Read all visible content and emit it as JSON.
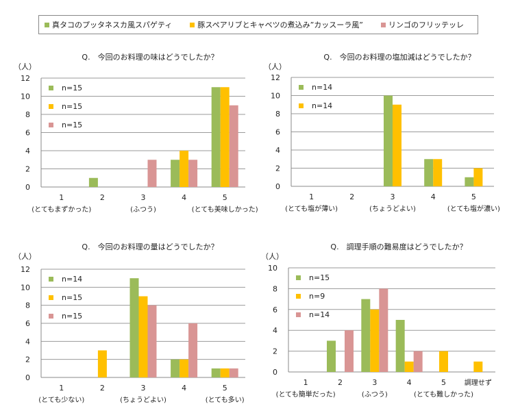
{
  "legend": [
    {
      "label": "真タコのプッタネスカ風スパゲティ",
      "color": "#9bbb59"
    },
    {
      "label": "豚スペアリブとキャベツの煮込み”カッスーラ風”",
      "color": "#ffc000"
    },
    {
      "label": "リンゴのフリッテッレ",
      "color": "#d99594"
    }
  ],
  "chart_data": [
    {
      "type": "bar",
      "title": "Q.　今回のお料理の味はどうでしたか？",
      "unit": "（人）",
      "ylim": [
        0,
        12
      ],
      "ytick_step": 2,
      "grid": true,
      "categories": [
        "1",
        "2",
        "3",
        "4",
        "5"
      ],
      "category_notes": [
        "(とてもまずかった)",
        "",
        "(ふつう)",
        "",
        "(とても美味しかった)"
      ],
      "n_labels": [
        "n=15",
        "n=15",
        "n=15"
      ],
      "series": [
        {
          "values": [
            0,
            1,
            0,
            3,
            11
          ],
          "color": "#9bbb59"
        },
        {
          "values": [
            0,
            0,
            0,
            4,
            11
          ],
          "color": "#ffc000"
        },
        {
          "values": [
            0,
            0,
            3,
            3,
            9
          ],
          "color": "#d99594"
        }
      ]
    },
    {
      "type": "bar",
      "title": "Q.　今回のお料理の塩加減はどうでしたか？",
      "unit": "（人）",
      "ylim": [
        0,
        12
      ],
      "ytick_step": 2,
      "grid": true,
      "categories": [
        "1",
        "2",
        "3",
        "4",
        "5"
      ],
      "category_notes": [
        "(とても塩が薄い)",
        "",
        "(ちょうどよい)",
        "",
        "(とても塩が濃い)"
      ],
      "n_labels": [
        "n=14",
        "n=14"
      ],
      "series": [
        {
          "values": [
            0,
            0,
            10,
            3,
            1
          ],
          "color": "#9bbb59"
        },
        {
          "values": [
            0,
            0,
            9,
            3,
            2
          ],
          "color": "#ffc000"
        }
      ]
    },
    {
      "type": "bar",
      "title": "Q.　今回のお料理の量はどうでしたか？",
      "unit": "（人）",
      "ylim": [
        0,
        12
      ],
      "ytick_step": 2,
      "grid": true,
      "categories": [
        "1",
        "2",
        "3",
        "4",
        "5"
      ],
      "category_notes": [
        "(とても少ない)",
        "",
        "(ちょうどよい)",
        "",
        "(とても多い)"
      ],
      "n_labels": [
        "n=14",
        "n=15",
        "n=15"
      ],
      "series": [
        {
          "values": [
            0,
            0,
            11,
            2,
            1
          ],
          "color": "#9bbb59"
        },
        {
          "values": [
            0,
            3,
            9,
            2,
            1
          ],
          "color": "#ffc000"
        },
        {
          "values": [
            0,
            0,
            8,
            6,
            1
          ],
          "color": "#d99594"
        }
      ]
    },
    {
      "type": "bar",
      "title": "Q.　調理手順の難易度はどうでしたか？",
      "unit": "（人）",
      "ylim": [
        0,
        10
      ],
      "ytick_step": 2,
      "grid": true,
      "categories": [
        "1",
        "2",
        "3",
        "4",
        "5",
        "調理せず"
      ],
      "category_notes": [
        "(とても簡単だった)",
        "",
        "(ふつう)",
        "",
        "(とても難しかった)",
        ""
      ],
      "n_labels": [
        "n=15",
        "n=9",
        "n=14"
      ],
      "series": [
        {
          "values": [
            0,
            3,
            7,
            5,
            0,
            0
          ],
          "color": "#9bbb59"
        },
        {
          "values": [
            0,
            0,
            6,
            1,
            2,
            1
          ],
          "color": "#ffc000"
        },
        {
          "values": [
            0,
            4,
            8,
            2,
            0,
            0
          ],
          "color": "#d99594"
        }
      ]
    }
  ]
}
